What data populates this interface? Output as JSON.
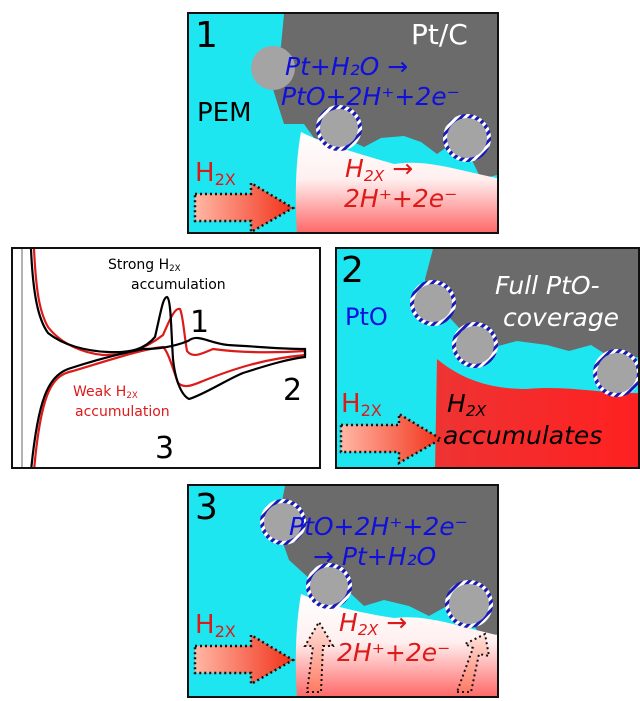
{
  "panel1": {
    "number": "1",
    "catalyst_label": "Pt/C",
    "membrane_label": "PEM",
    "oxidation_line1": "Pt+H₂O →",
    "oxidation_line2": "PtO+2H⁺+2e⁻",
    "h2x_arrow_label": "H",
    "h2x_arrow_sub": "2X",
    "h2x_reaction_h": "H",
    "h2x_reaction_sub": "2X",
    "h2x_reaction_arrow": "→",
    "h2x_reaction_line2": "2H⁺+2e⁻"
  },
  "cv_panel": {
    "strong_line1_pre": "Strong H",
    "strong_line1_sub": "2X",
    "strong_line2": "accumulation",
    "weak_line1_pre": "Weak H",
    "weak_line1_sub": "2X",
    "weak_line2": "accumulation",
    "marker_1": "1",
    "marker_2": "2",
    "marker_3": "3"
  },
  "panel2": {
    "number": "2",
    "oxide_label": "PtO",
    "coverage_line1": "Full PtO-",
    "coverage_line2": "coverage",
    "h2x_arrow_label": "H",
    "h2x_arrow_sub": "2X",
    "accum_line1_h": "H",
    "accum_line1_sub": "2X",
    "accum_line2": "accumulates"
  },
  "panel3": {
    "number": "3",
    "reduction_line1": "PtO+2H⁺+2e⁻",
    "reduction_line2": "→ Pt+H₂O",
    "h2x_arrow_label": "H",
    "h2x_arrow_sub": "2X",
    "h2x_reaction_h": "H",
    "h2x_reaction_sub": "2X",
    "h2x_reaction_arrow": "→",
    "h2x_reaction_line2": "2H⁺+2e⁻"
  },
  "colors": {
    "ionomer": "#1ee6f0",
    "carbon": "#6b6b6b",
    "platinum": "#a4a4a4",
    "oxide": "#1a1ab4",
    "accent_red": "#dd1a1a",
    "accent_blue": "#1010dd",
    "strong_curve": "#000000",
    "weak_curve": "#dd1a1a"
  },
  "icons": [
    "dotted-block-arrow",
    "platinum-particle",
    "oxide-shell"
  ]
}
